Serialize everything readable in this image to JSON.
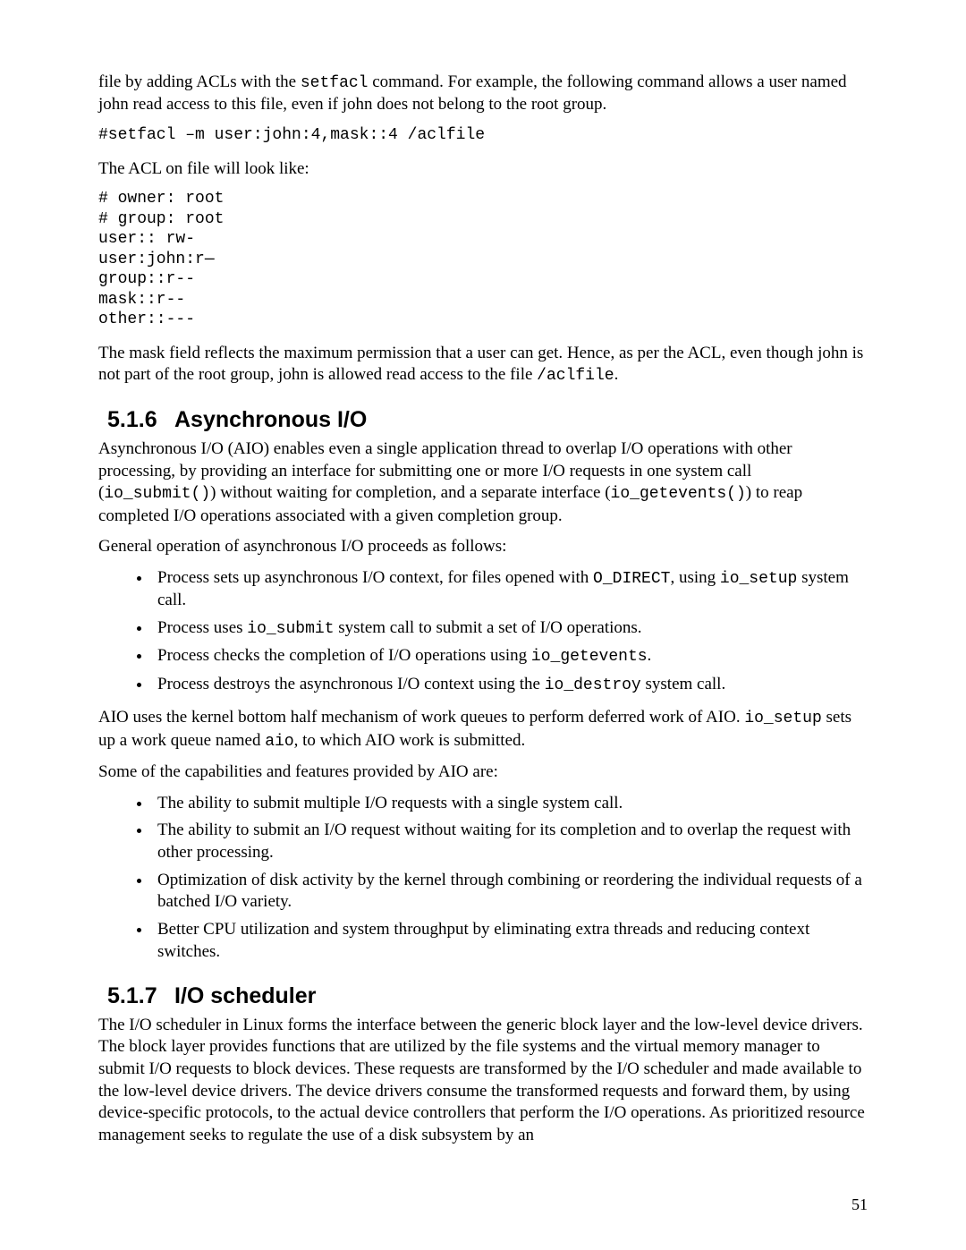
{
  "intro_p1_pre": "file by adding ACLs with the ",
  "intro_p1_code1": "setfacl",
  "intro_p1_post": " command.  For example, the following command allows a user named john read access to this file, even if john does not belong to the root group.",
  "codeblock1": "#setfacl –m user:john:4,mask::4 /aclfile",
  "intro_p2": "The ACL on file will look like:",
  "codeblock2": "# owner: root\n# group: root\nuser:: rw-\nuser:john:r—\ngroup::r--\nmask::r--\nother::---",
  "mask_p_pre": "The mask field reflects the maximum permission that a user can get.  Hence, as per the ACL, even though john is not part of the root group, john is allowed read access to the file ",
  "mask_p_code": "/aclfile",
  "mask_p_post": ".",
  "sec516_num": "5.1.6",
  "sec516_title": "Asynchronous I/O",
  "aio_p1_a": "Asynchronous I/O (AIO) enables even a single application thread to overlap I/O operations with other processing, by providing an interface for submitting one or more I/O requests in one system call (",
  "aio_p1_code1": "io_submit()",
  "aio_p1_b": ") without waiting for completion, and a separate interface (",
  "aio_p1_code2": "io_getevents()",
  "aio_p1_c": ") to reap completed I/O operations associated with a given completion group.",
  "aio_p2": "General operation of asynchronous I/O proceeds as follows:",
  "li1_a": "Process sets up asynchronous I/O context, for files opened with ",
  "li1_code1": "O_DIRECT",
  "li1_b": ", using ",
  "li1_code2": "io_setup",
  "li1_c": " system call.",
  "li2_a": "Process uses ",
  "li2_code": "io_submit",
  "li2_b": " system call to submit a set of I/O operations.",
  "li3_a": "Process checks the completion of I/O operations using ",
  "li3_code": "io_getevents",
  "li3_b": ".",
  "li4_a": "Process destroys the asynchronous I/O context using the ",
  "li4_code": "io_destroy",
  "li4_b": "  system call.",
  "aio_p3_a": "AIO uses the kernel bottom half mechanism of work queues to perform deferred work of AIO.  ",
  "aio_p3_code1": "io_setup",
  "aio_p3_b": " sets up a work queue named ",
  "aio_p3_code2": "aio",
  "aio_p3_c": ", to which AIO work is submitted.",
  "aio_p4": "Some of the capabilities and features provided by AIO are:",
  "cap_li1": "The ability to submit multiple I/O requests with a single system call.",
  "cap_li2": "The ability to submit an I/O request without waiting for its completion and to overlap the request with other processing.",
  "cap_li3": "Optimization of disk activity by the kernel through combining or reordering the individual requests of a batched I/O variety.",
  "cap_li4": "Better CPU utilization and system  throughput by eliminating extra threads  and reducing context switches.",
  "sec517_num": "5.1.7",
  "sec517_title": "I/O scheduler",
  "sched_p": "The I/O scheduler in Linux forms the interface between the generic block layer and the low-level device drivers.  The block layer provides functions that are utilized by the file systems and the virtual memory manager to submit I/O requests to block devices.  These requests are transformed by the I/O scheduler and made available to the low-level device drivers.  The device drivers consume the transformed requests and forward them, by using device-specific protocols, to the actual device controllers that perform the I/O operations.  As prioritized resource management seeks to regulate the use of a disk subsystem by an",
  "pagenum": "51"
}
